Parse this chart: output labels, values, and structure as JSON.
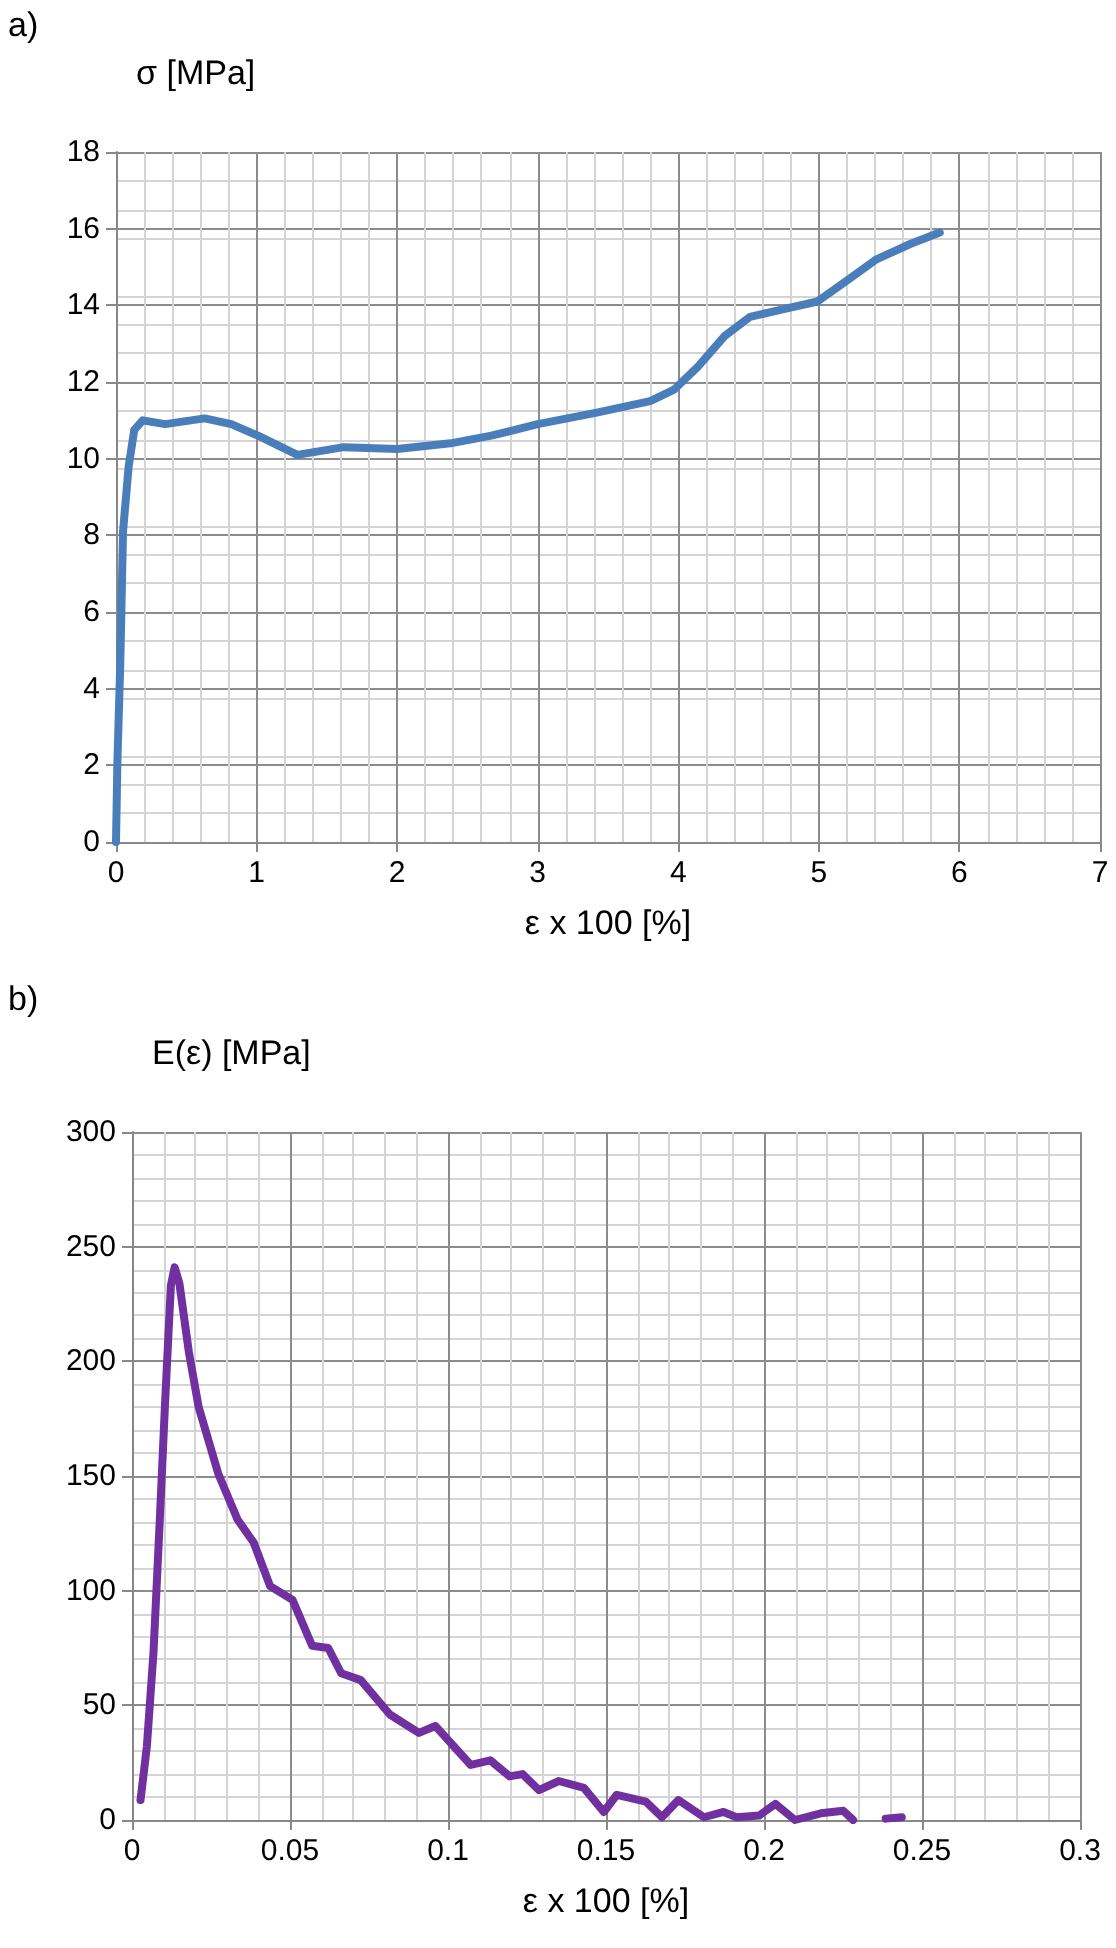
{
  "chart_data": [
    {
      "type": "line",
      "annotations": [
        "a)"
      ],
      "ylabel": "σ [MPa]",
      "xlabel": "ε x 100 [%]",
      "xlim": [
        0,
        7
      ],
      "xticks": [
        0,
        1,
        2,
        3,
        4,
        5,
        6,
        7
      ],
      "ylim": [
        0,
        18
      ],
      "yticks": [
        0,
        2,
        4,
        6,
        8,
        10,
        12,
        14,
        16,
        18
      ],
      "grid": true,
      "marker": "none",
      "line_style": "solid",
      "series": [
        {
          "color": "#4a7ebb",
          "x": [
            0,
            0.01,
            0.03,
            0.05,
            0.09,
            0.13,
            0.19,
            0.35,
            0.63,
            0.82,
            1.01,
            1.29,
            1.62,
            2.0,
            2.38,
            2.67,
            3.0,
            3.42,
            3.8,
            3.97,
            4.14,
            4.33,
            4.51,
            4.75,
            4.99,
            5.22,
            5.41,
            5.65,
            5.86
          ],
          "values": [
            0,
            2.1,
            4.6,
            8.1,
            9.8,
            10.75,
            11.0,
            10.9,
            11.05,
            10.9,
            10.6,
            10.1,
            10.3,
            10.25,
            10.4,
            10.6,
            10.9,
            11.2,
            11.5,
            11.8,
            12.4,
            13.2,
            13.7,
            13.9,
            14.1,
            14.7,
            15.2,
            15.6,
            15.9
          ]
        }
      ]
    },
    {
      "type": "line",
      "annotations": [
        "b)"
      ],
      "ylabel": "E(ε) [MPa]",
      "xlabel": "ε x 100 [%]",
      "xlim": [
        0,
        0.3
      ],
      "xticks": [
        0,
        0.05,
        0.1,
        0.15,
        0.2,
        0.25,
        0.3
      ],
      "ylim": [
        0,
        300
      ],
      "yticks": [
        0,
        50,
        100,
        150,
        200,
        250,
        300
      ],
      "grid": true,
      "marker": "none",
      "line_style": "solid",
      "series": [
        {
          "color": "#7030a0",
          "x": [
            0.0027,
            0.0047,
            0.0068,
            0.0088,
            0.0105,
            0.0123,
            0.0135,
            0.015,
            0.018,
            0.0211,
            0.0273,
            0.0334,
            0.0385,
            0.0437,
            0.0508,
            0.057,
            0.0621,
            0.0662,
            0.0724,
            0.0816,
            0.0908,
            0.096,
            0.1072,
            0.1134,
            0.1195,
            0.1236,
            0.1288,
            0.135,
            0.143,
            0.1493,
            0.1534,
            0.1626,
            0.1677,
            0.1729,
            0.181,
            0.1872,
            0.1913,
            0.1985,
            0.2036,
            0.2098,
            0.218,
            0.2251,
            0.2282,
            0.233,
            0.2385,
            0.2436
          ],
          "values": [
            8.7,
            32,
            73,
            131,
            183,
            233,
            241,
            234,
            204,
            180,
            151,
            131,
            121,
            102,
            96,
            76,
            75,
            64,
            61,
            46,
            38,
            41,
            24,
            26,
            19,
            20,
            13,
            17,
            14,
            3.5,
            11,
            8,
            1.2,
            8.7,
            1.2,
            3.5,
            1.2,
            2,
            7,
            0,
            2.9,
            4,
            0,
            null,
            0.6,
            1.2
          ]
        }
      ]
    }
  ]
}
